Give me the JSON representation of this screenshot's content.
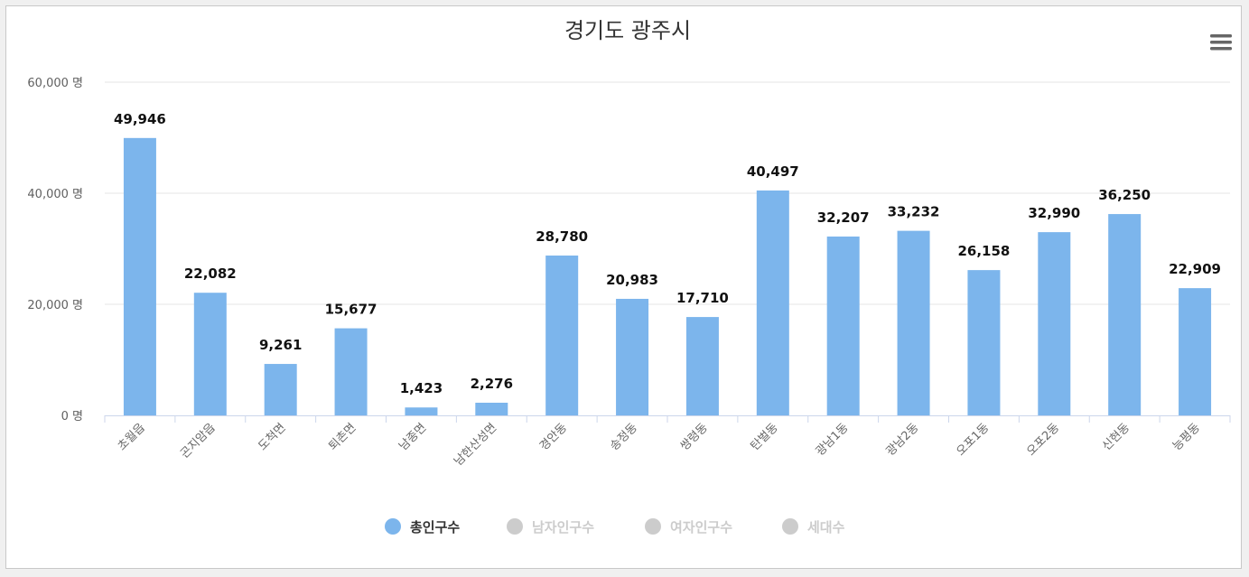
{
  "chart_data": {
    "type": "bar",
    "title": "경기도 광주시",
    "y_unit": "명",
    "ylim": [
      0,
      60000
    ],
    "yticks": [
      "0 명",
      "20,000 명",
      "40,000 명",
      "60,000 명"
    ],
    "ytick_values": [
      0,
      20000,
      40000,
      60000
    ],
    "grid": true,
    "categories": [
      "초월읍",
      "곤지암읍",
      "도척면",
      "퇴촌면",
      "남종면",
      "남한산성면",
      "경안동",
      "송정동",
      "쌍령동",
      "탄벌동",
      "광남1동",
      "광남2동",
      "오포1동",
      "오포2동",
      "신현동",
      "능평동"
    ],
    "series": [
      {
        "name": "총인구수",
        "visible": true,
        "values": [
          49946,
          22082,
          9261,
          15677,
          1423,
          2276,
          28780,
          20983,
          17710,
          40497,
          32207,
          33232,
          26158,
          32990,
          36250,
          22909
        ],
        "labels": [
          "49,946",
          "22,082",
          "9,261",
          "15,677",
          "1,423",
          "2,276",
          "28,780",
          "20,983",
          "17,710",
          "40,497",
          "32,207",
          "33,232",
          "26,158",
          "32,990",
          "36,250",
          "22,909"
        ]
      },
      {
        "name": "남자인구수",
        "visible": false
      },
      {
        "name": "여자인구수",
        "visible": false
      },
      {
        "name": "세대수",
        "visible": false
      }
    ],
    "legend_position": "bottom-center"
  },
  "colors": {
    "bar": "#7cb5ec",
    "legend_active_text": "#333333",
    "legend_inactive": "#cccccc",
    "grid": "#e6e6e6",
    "axis": "#ccd6eb",
    "menu_icon": "#666666"
  },
  "menu": {
    "icon": "hamburger-menu-icon"
  }
}
